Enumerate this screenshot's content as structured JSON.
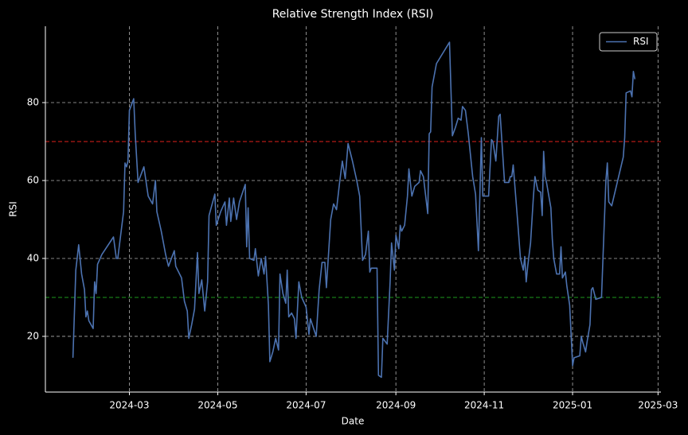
{
  "chart_data": {
    "type": "line",
    "title": "Relative Strength Index (RSI)",
    "x_label": "Date",
    "y_label": "RSI",
    "x": [
      21,
      23,
      25,
      27,
      29,
      30,
      31,
      32,
      35,
      36,
      37,
      38,
      41,
      49,
      51,
      52,
      56,
      57,
      58,
      59,
      60,
      63,
      64,
      66,
      70,
      73,
      76,
      78,
      79,
      82,
      85,
      87,
      91,
      92,
      96,
      98,
      100,
      101,
      103,
      105,
      107,
      108,
      110,
      112,
      114,
      115,
      119,
      120,
      123,
      126,
      127,
      129,
      130,
      132,
      134,
      136,
      140,
      141,
      142,
      143,
      146,
      147,
      149,
      151,
      153,
      154,
      156,
      157,
      159,
      161,
      163,
      164,
      166,
      168,
      169,
      170,
      172,
      174,
      175,
      177,
      179,
      182,
      184,
      185,
      189,
      191,
      193,
      195,
      196,
      199,
      201,
      203,
      205,
      207,
      209,
      211,
      214,
      217,
      219,
      221,
      223,
      225,
      226,
      227,
      231,
      232,
      234,
      235,
      238,
      240,
      241,
      243,
      244,
      246,
      247,
      248,
      250,
      252,
      253,
      255,
      257,
      260,
      261,
      263,
      266,
      267,
      268,
      269,
      272,
      281,
      283,
      285,
      287,
      289,
      290,
      292,
      294,
      297,
      299,
      301,
      303,
      304,
      308,
      310,
      311,
      313,
      315,
      316,
      319,
      322,
      323,
      324,
      325,
      328,
      330,
      332,
      333,
      334,
      335,
      336,
      337,
      339,
      340,
      342,
      344,
      345,
      346,
      347,
      348,
      351,
      352,
      353,
      355,
      357,
      358,
      359,
      361,
      362,
      364,
      366,
      367,
      371,
      372,
      373,
      375,
      376,
      378,
      379,
      380,
      382,
      386,
      387,
      389,
      390,
      391,
      393,
      401,
      402,
      403,
      406,
      407,
      408,
      409
    ],
    "series": [
      {
        "name": "RSI",
        "color": "#4c72b0",
        "values": [
          14.5,
          37,
          43.5,
          36,
          32,
          25,
          26.5,
          24,
          22,
          34,
          31,
          38.5,
          41,
          45.5,
          40,
          40,
          52,
          64.5,
          63.5,
          65,
          78,
          81,
          72,
          59.5,
          63.5,
          56,
          54,
          60,
          52,
          47,
          41,
          38,
          42,
          38,
          35,
          29,
          26.5,
          19.5,
          23,
          27,
          41.5,
          31,
          34.5,
          26.5,
          34,
          51,
          56.5,
          48.5,
          52,
          54.5,
          48.5,
          55.5,
          49.5,
          55.5,
          50,
          54.5,
          59,
          43,
          53,
          40,
          39.5,
          42.5,
          35.5,
          40,
          36,
          40.5,
          28,
          13.5,
          16,
          19.5,
          16.5,
          36,
          31,
          28.5,
          37,
          25,
          26,
          24.5,
          19.5,
          34,
          30,
          27.5,
          20.5,
          24.5,
          20,
          32,
          39,
          39,
          32.5,
          50,
          54,
          52.5,
          59,
          65,
          60.5,
          69.5,
          65,
          60,
          56,
          39.5,
          41,
          47,
          36.5,
          37.5,
          37.5,
          10,
          9.5,
          19.5,
          18,
          34,
          44,
          37,
          46,
          42.5,
          48.5,
          47,
          48.5,
          56,
          63,
          56,
          58.5,
          59.5,
          62.5,
          61,
          51.5,
          72,
          72.5,
          84,
          90,
          95.5,
          71.5,
          73.5,
          76,
          75.5,
          79,
          78,
          72,
          61,
          56.5,
          42,
          71,
          56,
          56,
          70.5,
          70,
          65,
          76.5,
          77,
          59.5,
          59.5,
          61,
          61,
          64,
          50,
          40,
          37,
          40.5,
          34,
          38,
          41,
          44,
          56,
          61,
          57.5,
          57,
          51,
          67.5,
          61,
          59.5,
          53,
          45,
          40,
          36,
          36,
          43,
          35,
          36.5,
          33,
          28,
          12.5,
          14.5,
          15,
          20,
          18.5,
          16,
          18.5,
          23,
          32,
          32.5,
          29.5,
          30,
          40,
          60,
          64.5,
          54.5,
          53.5,
          66,
          71,
          82.5,
          83,
          81.5,
          88,
          86
        ]
      }
    ],
    "xlim": [
      2,
      427
    ],
    "xticks": [
      {
        "value": 60,
        "label": "2024-03"
      },
      {
        "value": 121,
        "label": "2024-05"
      },
      {
        "value": 182,
        "label": "2024-07"
      },
      {
        "value": 244,
        "label": "2024-09"
      },
      {
        "value": 305,
        "label": "2024-11"
      },
      {
        "value": 366,
        "label": "2025-01"
      },
      {
        "value": 425,
        "label": "2025-03"
      }
    ],
    "ylim": [
      5.7,
      99.6
    ],
    "yticks": [
      20,
      40,
      60,
      80
    ],
    "hlines": [
      {
        "value": 70,
        "color": "#e0201b"
      },
      {
        "value": 30,
        "color": "#1e9a1e"
      }
    ],
    "grid": true,
    "legend": "upper right"
  }
}
